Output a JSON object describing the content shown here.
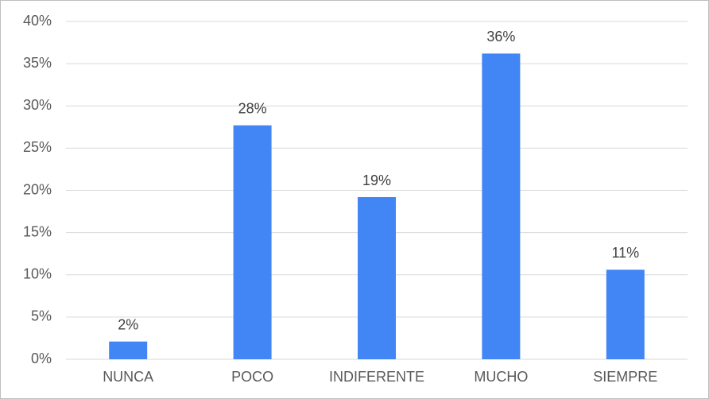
{
  "chart_data": {
    "type": "bar",
    "categories": [
      "NUNCA",
      "POCO",
      "INDIFERENTE",
      "MUCHO",
      "SIEMPRE"
    ],
    "values": [
      2.1,
      27.7,
      19.2,
      36.2,
      10.6
    ],
    "value_labels": [
      "2%",
      "28%",
      "19%",
      "36%",
      "11%"
    ],
    "color": "#4285f4",
    "ylim": [
      0,
      40
    ],
    "yticks": [
      {
        "value": 0,
        "label": "0%"
      },
      {
        "value": 5,
        "label": "5%"
      },
      {
        "value": 10,
        "label": "10%"
      },
      {
        "value": 15,
        "label": "15%"
      },
      {
        "value": 20,
        "label": "20%"
      },
      {
        "value": 25,
        "label": "25%"
      },
      {
        "value": 30,
        "label": "30%"
      },
      {
        "value": 35,
        "label": "35%"
      },
      {
        "value": 40,
        "label": "40%"
      }
    ],
    "grid": true
  }
}
